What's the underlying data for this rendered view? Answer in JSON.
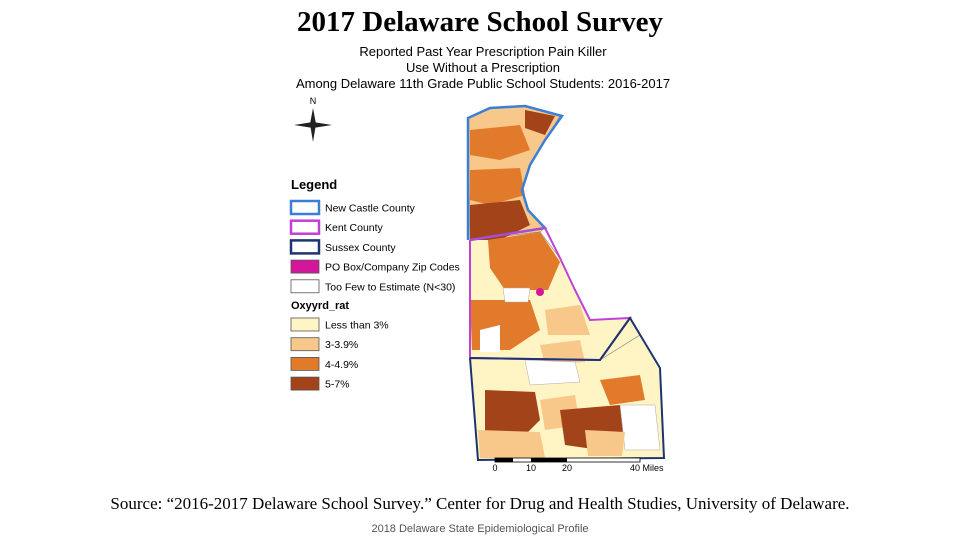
{
  "header": {
    "title": "2017 Delaware School Survey"
  },
  "map": {
    "title_lines": [
      "Reported Past Year Prescription Pain Killer",
      "Use Without a Prescription",
      "Among Delaware 11th Grade Public School Students: 2016-2017"
    ],
    "north": "N",
    "legend_title": "Legend",
    "boundaries": [
      {
        "label": "New Castle County",
        "color": "#3a7fd5",
        "kind": "outline"
      },
      {
        "label": "Kent County",
        "color": "#c040d8",
        "kind": "outline"
      },
      {
        "label": "Sussex County",
        "color": "#1c3470",
        "kind": "outline"
      },
      {
        "label": "PO Box/Company Zip Codes",
        "color": "#d4169a",
        "kind": "fill"
      },
      {
        "label": "Too Few to Estimate (N<30)",
        "color": "#ffffff",
        "kind": "fill"
      }
    ],
    "class_title": "Oxyyrd_rat",
    "classes": [
      {
        "label": "Less than 3%",
        "color": "#fff4c4"
      },
      {
        "label": "3-3.9%",
        "color": "#f7c889"
      },
      {
        "label": "4-4.9%",
        "color": "#e27a2c"
      },
      {
        "label": "5-7%",
        "color": "#a2431a"
      }
    ],
    "scale_labels": [
      "0",
      "10",
      "20",
      "40 Miles"
    ]
  },
  "source": "Source: “2016-2017 Delaware School Survey.” Center for Drug and Health Studies, University of Delaware.",
  "footer": "2018 Delaware State Epidemiological Profile"
}
